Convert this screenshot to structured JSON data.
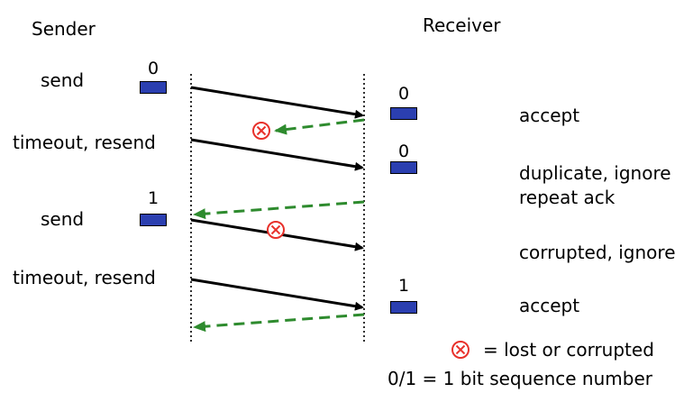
{
  "headers": {
    "sender": "Sender",
    "receiver": "Receiver"
  },
  "sender_events": [
    "send",
    "timeout, resend",
    "send",
    "timeout, resend"
  ],
  "receiver_events": [
    "accept",
    "duplicate, ignore",
    "repeat ack",
    "corrupted, ignore",
    "accept"
  ],
  "packet_labels": {
    "sender_packet_1": "0",
    "sender_packet_2": "1",
    "receiver_packet_1": "0",
    "receiver_packet_2": "0",
    "receiver_packet_3": "1"
  },
  "legend": {
    "lost_text": "= lost or corrupted",
    "sequence_text": "0/1 = 1 bit sequence number"
  },
  "colors": {
    "packet_fill": "#2b3fb0",
    "data_arrow": "#000000",
    "ack_arrow": "#2e8b2e",
    "error_mark": "#e8312b"
  }
}
